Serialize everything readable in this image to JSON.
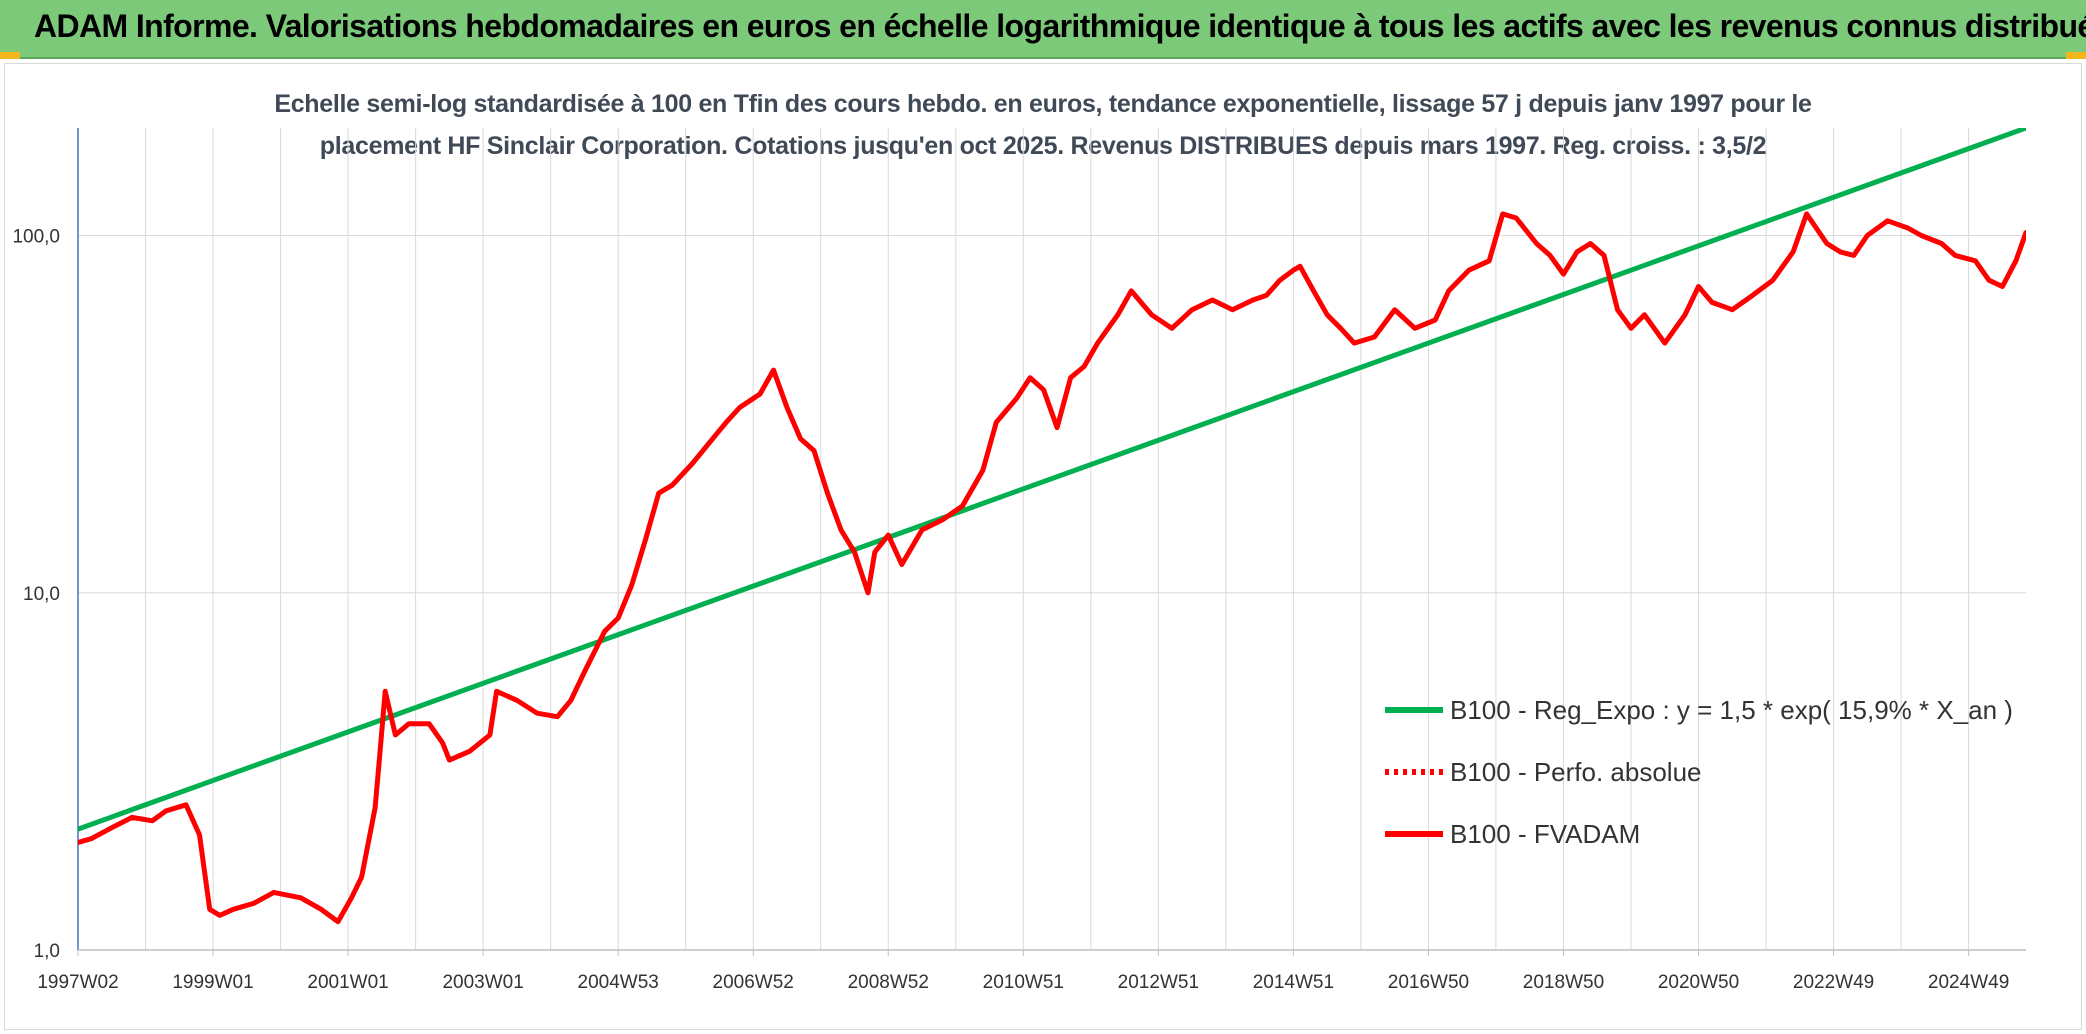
{
  "header": {
    "title": "ADAM Informe. Valorisations hebdomadaires en euros en échelle logarithmique identique à tous les actifs avec les revenus connus distribués"
  },
  "chart_data": {
    "type": "line",
    "title_line1": "Echelle semi-log standardisée à 100 en Tfin des cours hebdo. en euros, tendance exponentielle, lissage 57 j depuis janv 1997 pour le",
    "title_line2": "placement HF Sinclair Corporation. Cotations jusqu'en oct 2025. Revenus DISTRIBUES depuis mars 1997. Reg. croiss. : 3,5/2",
    "y_scale": "log",
    "ylim": [
      1,
      200
    ],
    "xlim": [
      1997.0,
      2025.85
    ],
    "grid": true,
    "legend_position": "right",
    "y_ticks": [
      {
        "value": 1,
        "label": "1,0"
      },
      {
        "value": 10,
        "label": "10,0"
      },
      {
        "value": 100,
        "label": "100,0"
      }
    ],
    "x_ticks": [
      {
        "value": 1997.0,
        "label": "1997W02"
      },
      {
        "value": 1999.0,
        "label": "1999W01"
      },
      {
        "value": 2001.0,
        "label": "2001W01"
      },
      {
        "value": 2003.0,
        "label": "2003W01"
      },
      {
        "value": 2005.0,
        "label": "2004W53"
      },
      {
        "value": 2007.0,
        "label": "2006W52"
      },
      {
        "value": 2009.0,
        "label": "2008W52"
      },
      {
        "value": 2011.0,
        "label": "2010W51"
      },
      {
        "value": 2013.0,
        "label": "2012W51"
      },
      {
        "value": 2015.0,
        "label": "2014W51"
      },
      {
        "value": 2017.0,
        "label": "2016W50"
      },
      {
        "value": 2019.0,
        "label": "2018W50"
      },
      {
        "value": 2021.0,
        "label": "2020W50"
      },
      {
        "value": 2023.0,
        "label": "2022W49"
      },
      {
        "value": 2025.0,
        "label": "2024W49"
      }
    ],
    "series": [
      {
        "name": "B100 - Reg_Expo : y = 1,5 * exp( 15,9% *  X_an )",
        "style": "solid",
        "color": "#00b050",
        "x": [
          1997.0,
          2025.85
        ],
        "y": [
          2.18,
          200
        ]
      },
      {
        "name": "B100 - Perfo. absolue",
        "style": "dotted",
        "color": "#ff0000",
        "x": [],
        "y": []
      },
      {
        "name": "B100 - FVADAM",
        "style": "solid",
        "color": "#ff0000",
        "x": [
          1997.0,
          1997.2,
          1997.5,
          1997.8,
          1998.1,
          1998.3,
          1998.6,
          1998.8,
          1998.95,
          1999.1,
          1999.3,
          1999.6,
          1999.9,
          2000.3,
          2000.6,
          2000.85,
          2001.05,
          2001.2,
          2001.4,
          2001.45,
          2001.55,
          2001.7,
          2001.9,
          2002.2,
          2002.4,
          2002.5,
          2002.8,
          2003.1,
          2003.2,
          2003.5,
          2003.8,
          2004.1,
          2004.3,
          2004.5,
          2004.8,
          2005.0,
          2005.2,
          2005.4,
          2005.6,
          2005.8,
          2006.1,
          2006.4,
          2006.6,
          2006.8,
          2007.1,
          2007.3,
          2007.5,
          2007.7,
          2007.9,
          2008.1,
          2008.3,
          2008.5,
          2008.7,
          2008.8,
          2009.0,
          2009.2,
          2009.5,
          2009.8,
          2010.1,
          2010.4,
          2010.6,
          2010.9,
          2011.1,
          2011.3,
          2011.5,
          2011.7,
          2011.9,
          2012.1,
          2012.4,
          2012.6,
          2012.9,
          2013.2,
          2013.5,
          2013.8,
          2014.1,
          2014.4,
          2014.6,
          2014.8,
          2015.0,
          2015.1,
          2015.3,
          2015.5,
          2015.7,
          2015.9,
          2016.2,
          2016.5,
          2016.8,
          2017.1,
          2017.3,
          2017.6,
          2017.9,
          2018.1,
          2018.3,
          2018.6,
          2018.8,
          2019.0,
          2019.2,
          2019.4,
          2019.6,
          2019.8,
          2020.0,
          2020.2,
          2020.5,
          2020.8,
          2021.0,
          2021.2,
          2021.5,
          2021.8,
          2022.1,
          2022.4,
          2022.6,
          2022.9,
          2023.1,
          2023.3,
          2023.5,
          2023.8,
          2024.1,
          2024.3,
          2024.6,
          2024.8,
          2025.1,
          2025.3,
          2025.5,
          2025.7,
          2025.85
        ],
        "y": [
          2.0,
          2.05,
          2.2,
          2.35,
          2.3,
          2.45,
          2.55,
          2.1,
          1.3,
          1.25,
          1.3,
          1.35,
          1.45,
          1.4,
          1.3,
          1.2,
          1.4,
          1.6,
          2.5,
          3.2,
          5.3,
          4.0,
          4.3,
          4.3,
          3.8,
          3.4,
          3.6,
          4.0,
          5.3,
          5.0,
          4.6,
          4.5,
          5.0,
          6.0,
          7.8,
          8.5,
          10.5,
          14.0,
          19.0,
          20.0,
          23.0,
          27.0,
          30.0,
          33.0,
          36.0,
          42.0,
          33.0,
          27.0,
          25.0,
          19.0,
          15.0,
          13.0,
          10.0,
          13.0,
          14.5,
          12.0,
          15.0,
          16.0,
          17.5,
          22.0,
          30.0,
          35.0,
          40.0,
          37.0,
          29.0,
          40.0,
          43.0,
          50.0,
          60.0,
          70.0,
          60.0,
          55.0,
          62.0,
          66.0,
          62.0,
          66.0,
          68.0,
          75.0,
          80.0,
          82.0,
          70.0,
          60.0,
          55.0,
          50.0,
          52.0,
          62.0,
          55.0,
          58.0,
          70.0,
          80.0,
          85.0,
          115.0,
          112.0,
          95.0,
          88.0,
          78.0,
          90.0,
          95.0,
          88.0,
          62.0,
          55.0,
          60.0,
          50.0,
          60.0,
          72.0,
          65.0,
          62.0,
          68.0,
          75.0,
          90.0,
          115.0,
          95.0,
          90.0,
          88.0,
          100.0,
          110.0,
          105.0,
          100.0,
          95.0,
          88.0,
          85.0,
          75.0,
          72.0,
          85.0,
          102.0
        ]
      }
    ]
  }
}
